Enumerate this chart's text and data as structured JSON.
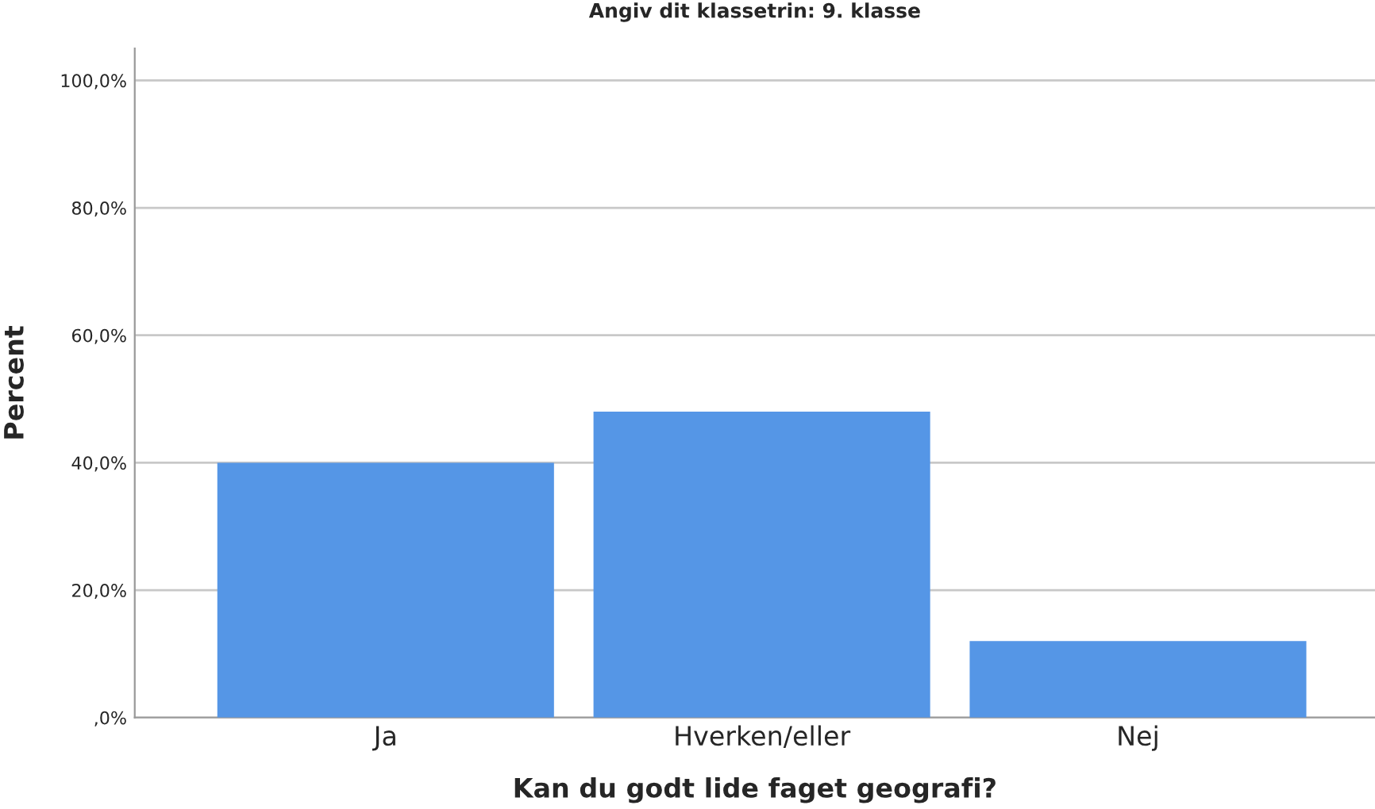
{
  "chart_data": {
    "type": "bar",
    "title": "Angiv dit klassetrin: 9. klasse",
    "xlabel": "Kan du godt lide faget geografi?",
    "ylabel": "Percent",
    "categories": [
      "Ja",
      "Hverken/eller",
      "Nej"
    ],
    "values": [
      40,
      48,
      12
    ],
    "color": "#5596e6",
    "ylim": [
      0,
      105
    ],
    "yticks": [
      {
        "value": 0,
        "label": ",0%"
      },
      {
        "value": 20,
        "label": "20,0%"
      },
      {
        "value": 40,
        "label": "40,0%"
      },
      {
        "value": 60,
        "label": "60,0%"
      },
      {
        "value": 80,
        "label": "80,0%"
      },
      {
        "value": 100,
        "label": "100,0%"
      }
    ],
    "grid": "y",
    "legend": false
  }
}
